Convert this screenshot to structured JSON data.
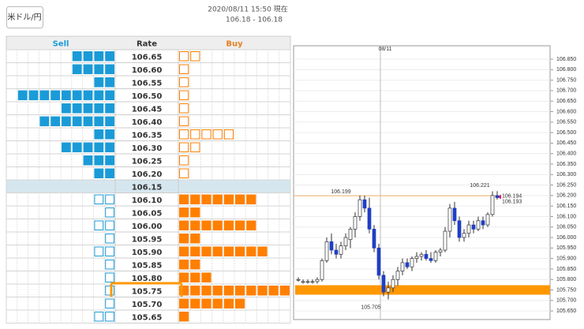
{
  "header": {
    "pair_button": "米ドル/円",
    "timestamp": "2020/08/11 15:50 現在",
    "price_range": "106.18 - 106.18"
  },
  "table": {
    "columns": [
      "Sell",
      "Rate",
      "Buy"
    ],
    "rows": [
      {
        "rate": "106.65",
        "sell": 4,
        "buy": 2,
        "sell_filled": true,
        "buy_filled": false
      },
      {
        "rate": "106.60",
        "sell": 4,
        "buy": 1,
        "sell_filled": true,
        "buy_filled": false
      },
      {
        "rate": "106.55",
        "sell": 2,
        "buy": 1,
        "sell_filled": true,
        "buy_filled": false
      },
      {
        "rate": "106.50",
        "sell": 9,
        "buy": 1,
        "sell_filled": true,
        "buy_filled": false
      },
      {
        "rate": "106.45",
        "sell": 5,
        "buy": 1,
        "sell_filled": true,
        "buy_filled": false
      },
      {
        "rate": "106.40",
        "sell": 7,
        "buy": 1,
        "sell_filled": true,
        "buy_filled": false
      },
      {
        "rate": "106.35",
        "sell": 2,
        "buy": 5,
        "sell_filled": true,
        "buy_filled": false
      },
      {
        "rate": "106.30",
        "sell": 5,
        "buy": 2,
        "sell_filled": true,
        "buy_filled": false
      },
      {
        "rate": "106.25",
        "sell": 3,
        "buy": 1,
        "sell_filled": true,
        "buy_filled": false
      },
      {
        "rate": "106.20",
        "sell": 2,
        "buy": 1,
        "sell_filled": true,
        "buy_filled": false
      },
      {
        "rate": "106.15",
        "sell": 0,
        "buy": 0,
        "sell_filled": true,
        "buy_filled": true,
        "highlight": true
      },
      {
        "rate": "106.10",
        "sell": 2,
        "buy": 7,
        "sell_filled": false,
        "buy_filled": true
      },
      {
        "rate": "106.05",
        "sell": 1,
        "buy": 2,
        "sell_filled": false,
        "buy_filled": true
      },
      {
        "rate": "106.00",
        "sell": 2,
        "buy": 7,
        "sell_filled": false,
        "buy_filled": true
      },
      {
        "rate": "105.95",
        "sell": 1,
        "buy": 2,
        "sell_filled": false,
        "buy_filled": true
      },
      {
        "rate": "105.90",
        "sell": 2,
        "buy": 8,
        "sell_filled": false,
        "buy_filled": true
      },
      {
        "rate": "105.85",
        "sell": 1,
        "buy": 2,
        "sell_filled": false,
        "buy_filled": true
      },
      {
        "rate": "105.80",
        "sell": 1,
        "buy": 3,
        "sell_filled": false,
        "buy_filled": true
      },
      {
        "rate": "105.75",
        "sell": 1,
        "buy": 10,
        "sell_filled": false,
        "buy_filled": true,
        "selected": true
      },
      {
        "rate": "105.70",
        "sell": 1,
        "buy": 6,
        "sell_filled": false,
        "buy_filled": true
      },
      {
        "rate": "105.65",
        "sell": 2,
        "buy": 1,
        "sell_filled": false,
        "buy_filled": true
      }
    ]
  },
  "chart_data": {
    "type": "candlestick",
    "candles": [
      [
        105.8,
        105.81,
        105.79,
        105.8
      ],
      [
        105.79,
        105.8,
        105.78,
        105.79
      ],
      [
        105.79,
        105.8,
        105.78,
        105.79
      ],
      [
        105.79,
        105.8,
        105.78,
        105.79
      ],
      [
        105.79,
        105.81,
        105.78,
        105.8
      ],
      [
        105.8,
        105.9,
        105.79,
        105.89
      ],
      [
        105.89,
        106.0,
        105.88,
        105.98
      ],
      [
        105.98,
        106.02,
        105.92,
        105.94
      ],
      [
        105.94,
        105.97,
        105.9,
        105.92
      ],
      [
        105.92,
        105.98,
        105.9,
        105.96
      ],
      [
        105.96,
        106.02,
        105.94,
        106.0
      ],
      [
        105.99,
        106.05,
        105.95,
        106.04
      ],
      [
        106.04,
        106.12,
        106.0,
        106.1
      ],
      [
        106.1,
        106.2,
        106.08,
        106.18
      ],
      [
        106.18,
        106.2,
        106.12,
        106.14
      ],
      [
        106.14,
        106.19,
        106.02,
        106.04
      ],
      [
        106.04,
        106.06,
        105.93,
        105.95
      ],
      [
        105.95,
        105.97,
        105.8,
        105.82
      ],
      [
        105.82,
        105.84,
        105.72,
        105.74
      ],
      [
        105.74,
        105.79,
        105.705,
        105.76
      ],
      [
        105.76,
        105.82,
        105.74,
        105.8
      ],
      [
        105.8,
        105.86,
        105.77,
        105.84
      ],
      [
        105.84,
        105.9,
        105.82,
        105.88
      ],
      [
        105.88,
        105.9,
        105.85,
        105.86
      ],
      [
        105.86,
        105.91,
        105.84,
        105.9
      ],
      [
        105.9,
        105.93,
        105.88,
        105.91
      ],
      [
        105.91,
        105.93,
        105.89,
        105.92
      ],
      [
        105.92,
        105.94,
        105.89,
        105.9
      ],
      [
        105.9,
        105.93,
        105.88,
        105.89
      ],
      [
        105.89,
        105.94,
        105.88,
        105.93
      ],
      [
        105.93,
        105.95,
        105.91,
        105.94
      ],
      [
        105.94,
        106.05,
        105.93,
        106.03
      ],
      [
        106.03,
        106.16,
        106.0,
        106.14
      ],
      [
        106.14,
        106.17,
        106.06,
        106.08
      ],
      [
        106.08,
        106.1,
        105.98,
        106.0
      ],
      [
        106.0,
        106.04,
        105.98,
        106.02
      ],
      [
        106.02,
        106.08,
        106.0,
        106.06
      ],
      [
        106.06,
        106.08,
        106.02,
        106.04
      ],
      [
        106.04,
        106.1,
        106.03,
        106.08
      ],
      [
        106.08,
        106.1,
        106.04,
        106.06
      ],
      [
        106.06,
        106.12,
        106.05,
        106.11
      ],
      [
        106.11,
        106.22,
        106.1,
        106.2
      ],
      [
        106.2,
        106.221,
        106.18,
        106.19
      ]
    ],
    "up_color": "#ffffff",
    "down_color": "#1f3fc4",
    "ylim": [
      105.609,
      106.914
    ],
    "yticks": [
      {
        "value": 106.85,
        "label": "106.850"
      },
      {
        "value": 106.8,
        "label": "106.800"
      },
      {
        "value": 106.75,
        "label": "106.750"
      },
      {
        "value": 106.7,
        "label": "106.700"
      },
      {
        "value": 106.65,
        "label": "106.650"
      },
      {
        "value": 106.6,
        "label": "106.600"
      },
      {
        "value": 106.55,
        "label": "106.550"
      },
      {
        "value": 106.5,
        "label": "106.500"
      },
      {
        "value": 106.45,
        "label": "106.450"
      },
      {
        "value": 106.4,
        "label": "106.400"
      },
      {
        "value": 106.35,
        "label": "106.350"
      },
      {
        "value": 106.3,
        "label": "106.300"
      },
      {
        "value": 106.25,
        "label": "106.250"
      },
      {
        "value": 106.2,
        "label": "106.200"
      },
      {
        "value": 106.15,
        "label": "106.150"
      },
      {
        "value": 106.1,
        "label": "106.100"
      },
      {
        "value": 106.05,
        "label": "106.050"
      },
      {
        "value": 106,
        "label": "106.000"
      },
      {
        "value": 105.95,
        "label": "105.950"
      },
      {
        "value": 105.9,
        "label": "105.900"
      },
      {
        "value": 105.85,
        "label": "105.850"
      },
      {
        "value": 105.8,
        "label": "105.800"
      },
      {
        "value": 105.75,
        "label": "105.750"
      },
      {
        "value": 105.7,
        "label": "105.700"
      },
      {
        "value": 105.65,
        "label": "105.650"
      }
    ],
    "grid": true,
    "date_label": "08/11",
    "reference_line": 106.199,
    "high_label": 106.221,
    "bid": 106.194,
    "ask": 106.193,
    "low_label": 105.705,
    "band": 105.75,
    "band_color": "#ff9800"
  }
}
